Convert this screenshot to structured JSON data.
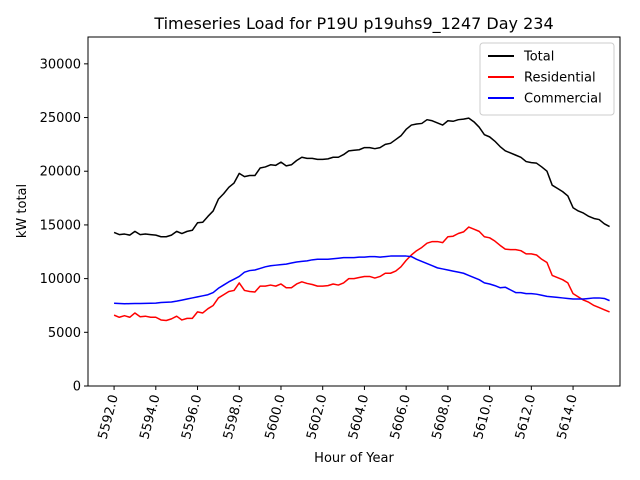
{
  "chart_data": {
    "type": "line",
    "title": "Timeseries Load for P19U p19uhs9_1247  Day 234",
    "xlabel": "Hour of Year",
    "ylabel": "kW total",
    "xlim": [
      5590.75,
      5616.25
    ],
    "ylim": [
      0,
      32500
    ],
    "xticks": [
      5592,
      5594,
      5596,
      5598,
      5600,
      5602,
      5604,
      5606,
      5608,
      5610,
      5612,
      5614
    ],
    "xtick_labels": [
      "5592.0",
      "5594.0",
      "5596.0",
      "5598.0",
      "5600.0",
      "5602.0",
      "5604.0",
      "5606.0",
      "5608.0",
      "5610.0",
      "5612.0",
      "5614.0"
    ],
    "yticks": [
      0,
      5000,
      10000,
      15000,
      20000,
      25000,
      30000
    ],
    "ytick_labels": [
      "0",
      "5000",
      "10000",
      "15000",
      "20000",
      "25000",
      "30000"
    ],
    "legend_position": "top-right",
    "x_start": 5592.0,
    "x_step": 0.25,
    "series": [
      {
        "name": "Total",
        "color": "#000000",
        "values": [
          14300,
          14100,
          14150,
          14050,
          14400,
          14100,
          14150,
          14100,
          14050,
          13900,
          13900,
          14050,
          14400,
          14200,
          14400,
          14500,
          15200,
          15250,
          15800,
          16300,
          17400,
          17900,
          18500,
          18900,
          19800,
          19500,
          19600,
          19600,
          20300,
          20400,
          20600,
          20550,
          20850,
          20500,
          20600,
          21000,
          21300,
          21200,
          21200,
          21100,
          21100,
          21150,
          21300,
          21300,
          21550,
          21900,
          21950,
          22000,
          22200,
          22200,
          22100,
          22200,
          22500,
          22600,
          22950,
          23300,
          23900,
          24300,
          24400,
          24450,
          24800,
          24700,
          24500,
          24300,
          24700,
          24650,
          24800,
          24850,
          24950,
          24600,
          24100,
          23400,
          23200,
          22800,
          22300,
          21900,
          21700,
          21500,
          21300,
          20900,
          20800,
          20750,
          20400,
          20000,
          18700,
          18400,
          18100,
          17700,
          16600,
          16300,
          16100,
          15800,
          15600,
          15500,
          15100,
          14850
        ]
      },
      {
        "name": "Residential",
        "color": "#ff0000",
        "values": [
          6600,
          6400,
          6550,
          6400,
          6800,
          6450,
          6500,
          6400,
          6400,
          6150,
          6100,
          6250,
          6500,
          6150,
          6300,
          6300,
          6900,
          6800,
          7200,
          7500,
          8200,
          8500,
          8800,
          8900,
          9600,
          8900,
          8800,
          8750,
          9300,
          9300,
          9400,
          9300,
          9500,
          9150,
          9150,
          9500,
          9700,
          9550,
          9450,
          9300,
          9300,
          9350,
          9500,
          9400,
          9600,
          10000,
          10000,
          10100,
          10200,
          10200,
          10050,
          10200,
          10500,
          10500,
          10700,
          11100,
          11700,
          12200,
          12600,
          12900,
          13300,
          13450,
          13450,
          13350,
          13900,
          13950,
          14200,
          14350,
          14800,
          14600,
          14400,
          13900,
          13800,
          13500,
          13100,
          12750,
          12700,
          12700,
          12600,
          12300,
          12300,
          12200,
          11800,
          11500,
          10300,
          10100,
          9900,
          9600,
          8600,
          8300,
          8000,
          7800,
          7500,
          7300,
          7100,
          6900
        ]
      },
      {
        "name": "Commercial",
        "color": "#0000ff",
        "values": [
          7700,
          7680,
          7660,
          7670,
          7680,
          7680,
          7690,
          7700,
          7720,
          7780,
          7800,
          7820,
          7900,
          8000,
          8100,
          8200,
          8300,
          8400,
          8500,
          8700,
          9100,
          9400,
          9700,
          9950,
          10200,
          10600,
          10750,
          10800,
          10950,
          11100,
          11200,
          11250,
          11300,
          11350,
          11450,
          11550,
          11600,
          11650,
          11750,
          11800,
          11800,
          11800,
          11850,
          11900,
          11950,
          11950,
          11950,
          12000,
          12000,
          12050,
          12050,
          12000,
          12050,
          12100,
          12100,
          12100,
          12100,
          12050,
          11800,
          11600,
          11400,
          11200,
          11000,
          10900,
          10800,
          10700,
          10600,
          10500,
          10300,
          10100,
          9900,
          9600,
          9500,
          9350,
          9150,
          9200,
          8950,
          8700,
          8700,
          8600,
          8600,
          8550,
          8450,
          8350,
          8300,
          8250,
          8200,
          8150,
          8100,
          8100,
          8100,
          8150,
          8200,
          8200,
          8150,
          7950
        ]
      }
    ]
  }
}
